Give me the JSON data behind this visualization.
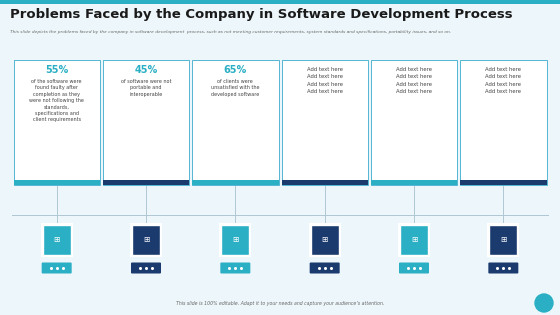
{
  "title": "Problems Faced by the Company in Software Development Process",
  "subtitle": "This slide depicts the problems faced by the company in software development  process, such as not meeting customer requirements, system standards and specifications, portability issues, and so on.",
  "footer": "This slide is 100% editable. Adapt it to your needs and capture your audience’s attention.",
  "bg_color": "#edf6fa",
  "title_color": "#1a1a1a",
  "subtitle_color": "#666666",
  "border_color": "#3aaccb",
  "columns": [
    {
      "pct": "55%",
      "text": "of the software were\nfound faulty after\ncompletion as they\nwere not following the\nstandards,\nspecifications and\nclient requirements",
      "icon_bg": "#2aafc4",
      "tag_color": "#2aafc4"
    },
    {
      "pct": "45%",
      "text": "of software were not\nportable and\ninteroperable",
      "icon_bg": "#1b3a6e",
      "tag_color": "#1b3a6e"
    },
    {
      "pct": "65%",
      "text": "of clients were\nunsatisfied with the\ndeveloped software",
      "icon_bg": "#2aafc4",
      "tag_color": "#2aafc4"
    },
    {
      "pct": null,
      "text": "Add text here\nAdd text here\nAdd text here\nAdd text here",
      "icon_bg": "#1b3a6e",
      "tag_color": "#1b3a6e"
    },
    {
      "pct": null,
      "text": "Add text here\nAdd text here\nAdd text here\nAdd text here",
      "icon_bg": "#2aafc4",
      "tag_color": "#2aafc4"
    },
    {
      "pct": null,
      "text": "Add text here\nAdd text here\nAdd text here\nAdd text here",
      "icon_bg": "#1b3a6e",
      "tag_color": "#1b3a6e"
    }
  ],
  "pct_color": "#2aafc4",
  "text_color": "#444444",
  "box_border": "#3aaccb",
  "line_color": "#b0c8d4"
}
